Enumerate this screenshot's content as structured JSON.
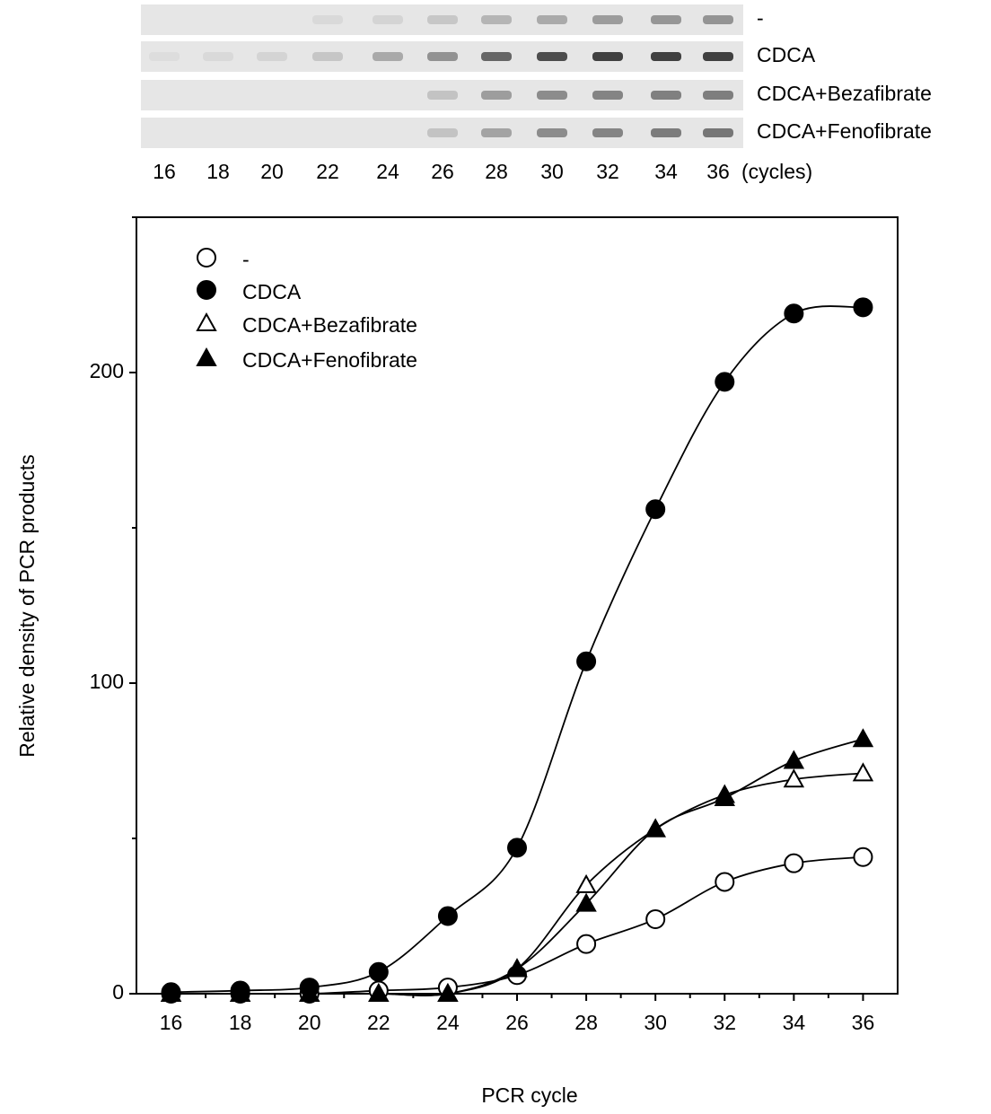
{
  "chart_data": {
    "type": "line",
    "y_label": "Relative density of PCR products",
    "x_label": "PCR cycle",
    "gel_unit_label": "(cycles)",
    "x": [
      16,
      18,
      20,
      22,
      24,
      26,
      28,
      30,
      32,
      34,
      36
    ],
    "xlim": [
      15,
      37
    ],
    "xticks": [
      16,
      18,
      20,
      22,
      24,
      26,
      28,
      30,
      32,
      34,
      36
    ],
    "xminor_ticks": [
      17,
      19,
      21,
      23,
      25,
      27,
      29,
      31,
      33,
      35
    ],
    "ylim": [
      0,
      250
    ],
    "yticks": [
      0,
      100,
      200
    ],
    "yminor_ticks": [
      50,
      150,
      250
    ],
    "legend": "top-left",
    "series": [
      {
        "name": "-",
        "color": "#000000",
        "marker": "circle",
        "filled": false,
        "values": [
          0,
          0,
          0,
          1,
          2,
          6,
          16,
          24,
          36,
          42,
          44
        ]
      },
      {
        "name": "CDCA",
        "color": "#000000",
        "marker": "circle",
        "filled": true,
        "values": [
          0.5,
          1,
          2,
          7,
          25,
          47,
          107,
          156,
          197,
          219,
          221
        ]
      },
      {
        "name": "CDCA+Bezafibrate",
        "color": "#000000",
        "marker": "triangle",
        "filled": false,
        "values": [
          0,
          0,
          0,
          0,
          0,
          8,
          35,
          53,
          64,
          69,
          71
        ]
      },
      {
        "name": "CDCA+Fenofibrate",
        "color": "#000000",
        "marker": "triangle",
        "filled": true,
        "values": [
          0,
          0,
          0,
          0,
          0,
          8,
          29,
          53,
          63,
          75,
          82
        ]
      }
    ]
  }
}
